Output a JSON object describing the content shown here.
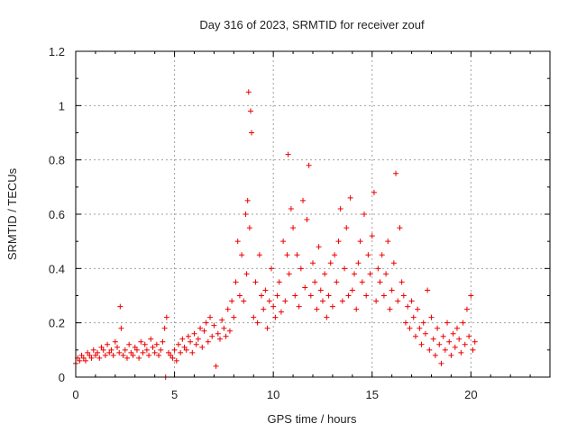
{
  "chart_data": {
    "type": "scatter",
    "title": "Day 316 of 2023, SRMTID for receiver zouf",
    "xlabel": "GPS time / hours",
    "ylabel": "SRMTID / TECUs",
    "xlim": [
      0,
      24
    ],
    "ylim": [
      0,
      1.2
    ],
    "xticks": [
      0,
      5,
      10,
      15,
      20
    ],
    "xtick_labels": [
      "0",
      "5",
      "10",
      "15",
      "20"
    ],
    "yticks": [
      0,
      0.2,
      0.4,
      0.6,
      0.8,
      1.0,
      1.2
    ],
    "ytick_labels": [
      "0",
      "0.2",
      "0.4",
      "0.6",
      "0.8",
      "1",
      "1.2"
    ],
    "grid": true,
    "marker": "plus",
    "color": "#ee0000",
    "series": [
      {
        "name": "SRMTID",
        "x": [
          0.0,
          0.1,
          0.2,
          0.3,
          0.4,
          0.5,
          0.6,
          0.7,
          0.8,
          0.9,
          1.0,
          1.1,
          1.2,
          1.3,
          1.4,
          1.5,
          1.6,
          1.7,
          1.8,
          1.9,
          2.0,
          2.1,
          2.2,
          2.25,
          2.3,
          2.4,
          2.5,
          2.6,
          2.7,
          2.8,
          2.9,
          3.0,
          3.1,
          3.2,
          3.3,
          3.4,
          3.5,
          3.6,
          3.7,
          3.8,
          3.9,
          4.0,
          4.1,
          4.2,
          4.3,
          4.4,
          4.5,
          4.55,
          4.6,
          4.7,
          4.8,
          4.9,
          5.0,
          5.1,
          5.2,
          5.3,
          5.4,
          5.5,
          5.6,
          5.7,
          5.8,
          5.9,
          6.0,
          6.1,
          6.2,
          6.3,
          6.4,
          6.5,
          6.6,
          6.7,
          6.8,
          6.9,
          7.0,
          7.1,
          7.2,
          7.3,
          7.4,
          7.5,
          7.6,
          7.7,
          7.8,
          7.9,
          8.0,
          8.1,
          8.2,
          8.3,
          8.4,
          8.5,
          8.6,
          8.65,
          8.7,
          8.75,
          8.8,
          8.85,
          8.9,
          9.0,
          9.1,
          9.2,
          9.3,
          9.4,
          9.5,
          9.6,
          9.7,
          9.8,
          9.9,
          10.0,
          10.1,
          10.2,
          10.3,
          10.4,
          10.5,
          10.6,
          10.7,
          10.75,
          10.8,
          10.9,
          11.0,
          11.1,
          11.2,
          11.3,
          11.4,
          11.5,
          11.6,
          11.7,
          11.8,
          11.9,
          12.0,
          12.1,
          12.2,
          12.3,
          12.4,
          12.5,
          12.6,
          12.7,
          12.8,
          12.9,
          13.0,
          13.1,
          13.2,
          13.3,
          13.4,
          13.5,
          13.6,
          13.7,
          13.8,
          13.9,
          14.0,
          14.1,
          14.2,
          14.3,
          14.4,
          14.5,
          14.6,
          14.7,
          14.8,
          14.9,
          15.0,
          15.1,
          15.2,
          15.3,
          15.4,
          15.5,
          15.6,
          15.7,
          15.8,
          15.9,
          16.0,
          16.1,
          16.2,
          16.3,
          16.4,
          16.5,
          16.6,
          16.7,
          16.8,
          16.9,
          17.0,
          17.1,
          17.2,
          17.3,
          17.4,
          17.5,
          17.6,
          17.7,
          17.8,
          17.9,
          18.0,
          18.1,
          18.2,
          18.3,
          18.4,
          18.5,
          18.6,
          18.7,
          18.8,
          18.9,
          19.0,
          19.1,
          19.2,
          19.3,
          19.4,
          19.5,
          19.6,
          19.7,
          19.8,
          19.9,
          20.0,
          20.1,
          20.2
        ],
        "y": [
          0.05,
          0.07,
          0.06,
          0.08,
          0.07,
          0.06,
          0.09,
          0.08,
          0.07,
          0.1,
          0.08,
          0.09,
          0.07,
          0.11,
          0.1,
          0.08,
          0.12,
          0.09,
          0.1,
          0.08,
          0.13,
          0.11,
          0.09,
          0.26,
          0.18,
          0.08,
          0.1,
          0.07,
          0.12,
          0.09,
          0.08,
          0.11,
          0.1,
          0.07,
          0.13,
          0.09,
          0.12,
          0.1,
          0.08,
          0.14,
          0.11,
          0.09,
          0.12,
          0.08,
          0.1,
          0.13,
          0.18,
          0.0,
          0.22,
          0.09,
          0.08,
          0.07,
          0.1,
          0.06,
          0.12,
          0.09,
          0.14,
          0.11,
          0.1,
          0.15,
          0.13,
          0.09,
          0.16,
          0.12,
          0.14,
          0.18,
          0.11,
          0.17,
          0.2,
          0.13,
          0.22,
          0.15,
          0.19,
          0.04,
          0.16,
          0.14,
          0.21,
          0.18,
          0.15,
          0.25,
          0.17,
          0.28,
          0.22,
          0.35,
          0.5,
          0.3,
          0.45,
          0.28,
          0.6,
          0.38,
          0.65,
          1.05,
          0.55,
          0.98,
          0.9,
          0.22,
          0.35,
          0.2,
          0.45,
          0.3,
          0.25,
          0.32,
          0.18,
          0.28,
          0.4,
          0.26,
          0.22,
          0.3,
          0.35,
          0.24,
          0.5,
          0.28,
          0.45,
          0.82,
          0.38,
          0.62,
          0.55,
          0.3,
          0.45,
          0.26,
          0.4,
          0.65,
          0.33,
          0.58,
          0.78,
          0.3,
          0.42,
          0.35,
          0.25,
          0.48,
          0.32,
          0.28,
          0.38,
          0.22,
          0.3,
          0.42,
          0.26,
          0.45,
          0.35,
          0.5,
          0.62,
          0.28,
          0.4,
          0.55,
          0.3,
          0.66,
          0.32,
          0.38,
          0.25,
          0.42,
          0.5,
          0.35,
          0.6,
          0.3,
          0.45,
          0.38,
          0.52,
          0.68,
          0.28,
          0.4,
          0.35,
          0.45,
          0.3,
          0.38,
          0.5,
          0.25,
          0.32,
          0.42,
          0.75,
          0.28,
          0.55,
          0.35,
          0.3,
          0.2,
          0.26,
          0.18,
          0.28,
          0.22,
          0.15,
          0.25,
          0.18,
          0.12,
          0.2,
          0.16,
          0.32,
          0.1,
          0.22,
          0.14,
          0.08,
          0.18,
          0.12,
          0.05,
          0.15,
          0.1,
          0.2,
          0.13,
          0.08,
          0.16,
          0.11,
          0.18,
          0.14,
          0.09,
          0.2,
          0.12,
          0.25,
          0.15,
          0.3,
          0.1,
          0.13
        ]
      }
    ]
  }
}
